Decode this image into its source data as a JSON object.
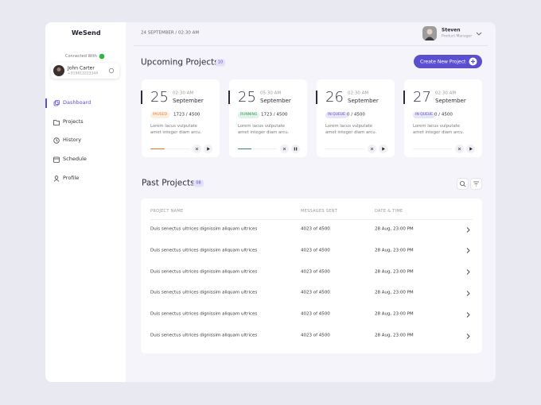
{
  "sidebar": {
    "brand": "WeSend",
    "connected_label": "Connected With",
    "user": {
      "name": "John Carter",
      "phone": "+919812223344"
    },
    "nav": [
      "Dashboard",
      "Projects",
      "History",
      "Schedule",
      "Profile"
    ]
  },
  "header": {
    "datetime": "24 SEPTEMBER / 02:30 AM",
    "user": {
      "name": "Steven",
      "role": "Product Manager"
    }
  },
  "upcoming": {
    "title": "Upcoming Projects",
    "count": "10",
    "button": "Create New Project",
    "cards": [
      {
        "day": "25",
        "time": "02:30 AM",
        "month": "September",
        "status": "PAUSED",
        "status_color": "#e8833a",
        "status_bg": "#fdeedd",
        "sent": "1723 / 4500",
        "description": "Lorem lacus vulputate amet integer diam arcu.",
        "progress": 36,
        "progress_color": "#e8742e",
        "playing": false
      },
      {
        "day": "25",
        "time": "05:30 AM",
        "month": "September",
        "status": "RUNNING",
        "status_color": "#3f9a5a",
        "status_bg": "#e1f3e6",
        "sent": "1723 / 4500",
        "description": "Lorem lacus vulputate amet integer diam arcu.",
        "progress": 35,
        "progress_color": "#2e8b62",
        "playing": true
      },
      {
        "day": "26",
        "time": "02:30 AM",
        "month": "September",
        "status": "IN QUEUE",
        "status_color": "#5a4fcf",
        "status_bg": "#e7e6f7",
        "sent": "0 / 4500",
        "description": "Lorem lacus vulputate amet integer diam arcu.",
        "progress": 0,
        "progress_color": "#5a4fcf",
        "playing": false
      },
      {
        "day": "27",
        "time": "02:30 AM",
        "month": "September",
        "status": "IN QUEUE",
        "status_color": "#5a4fcf",
        "status_bg": "#e7e6f7",
        "sent": "0 / 4500",
        "description": "Lorem lacus vulputate amet integer diam arcu.",
        "progress": 0,
        "progress_color": "#5a4fcf",
        "playing": false
      }
    ]
  },
  "past": {
    "title": "Past Projects",
    "count": "08",
    "columns": [
      "PROJECT NAME",
      "MESSAGES SENT",
      "DATE & TIME"
    ],
    "rows": [
      [
        "Duis senectus ultrices dignissim aliquam ultrices",
        "4023 of 4500",
        "28 Aug, 23:00 PM"
      ],
      [
        "Duis senectus ultrices dignissim aliquam ultrices",
        "4023 of 4500",
        "28 Aug, 23:00 PM"
      ],
      [
        "Duis senectus ultrices dignissim aliquam ultrices",
        "4023 of 4500",
        "28 Aug, 23:00 PM"
      ],
      [
        "Duis senectus ultrices dignissim aliquam ultrices",
        "4023 of 4500",
        "28 Aug, 23:00 PM"
      ],
      [
        "Duis senectus ultrices dignissim aliquam ultrices",
        "4023 of 4500",
        "28 Aug, 23:00 PM"
      ],
      [
        "Duis senectus ultrices dignissim aliquam ultrices",
        "4023 of 4500",
        "28 Aug, 23:00 PM"
      ]
    ]
  }
}
